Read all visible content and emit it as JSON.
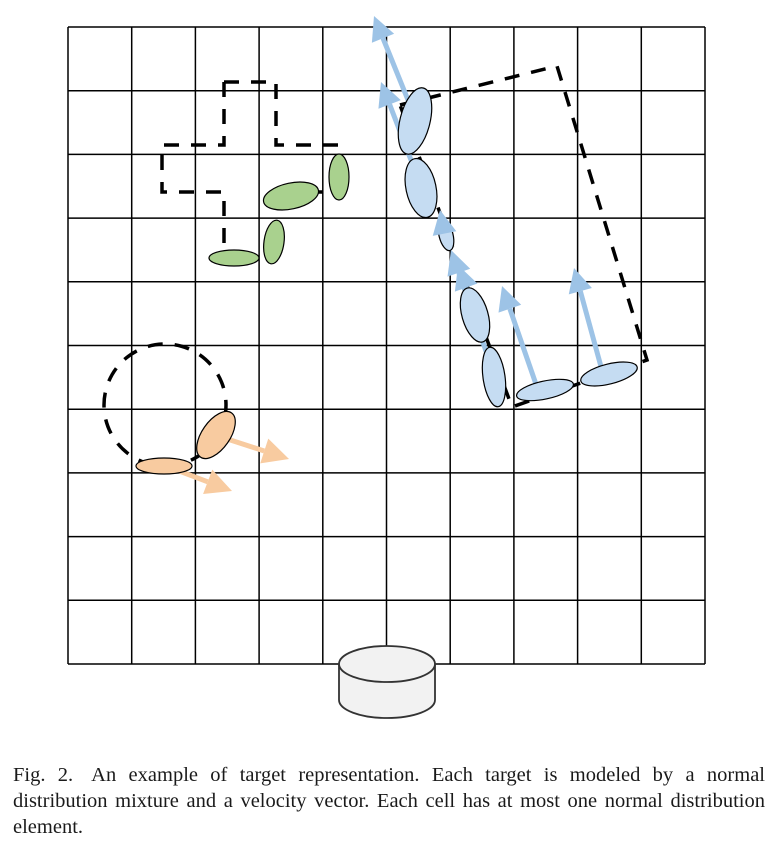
{
  "figure": {
    "grid": {
      "rows": 10,
      "cols": 10
    },
    "colors": {
      "grid_line": "#000000",
      "target_outline": "#000000",
      "green_fill": "#a9d18e",
      "blue_fill": "#c5dcf2",
      "blue_arrow": "#9dc3e6",
      "orange_fill": "#f8cba0",
      "orange_arrow": "#f8cba0",
      "sensor_fill": "#f2f2f2"
    },
    "targets": [
      {
        "name": "green-target",
        "shape": "dashed-polyline",
        "color": "green",
        "elements": 5,
        "velocity": "none"
      },
      {
        "name": "blue-target",
        "shape": "dashed-rectangle",
        "color": "blue",
        "elements": 9,
        "velocity": "arrows"
      },
      {
        "name": "orange-target",
        "shape": "dashed-circle",
        "color": "orange",
        "elements": 2,
        "velocity": "arrows"
      }
    ],
    "sensor": {
      "icon": "cylinder-sensor-icon"
    }
  },
  "caption": {
    "label": "Fig. 2.",
    "text": "An example of target representation. Each target is modeled by a normal distribution mixture and a velocity vector. Each cell has at most one normal distribution element."
  }
}
